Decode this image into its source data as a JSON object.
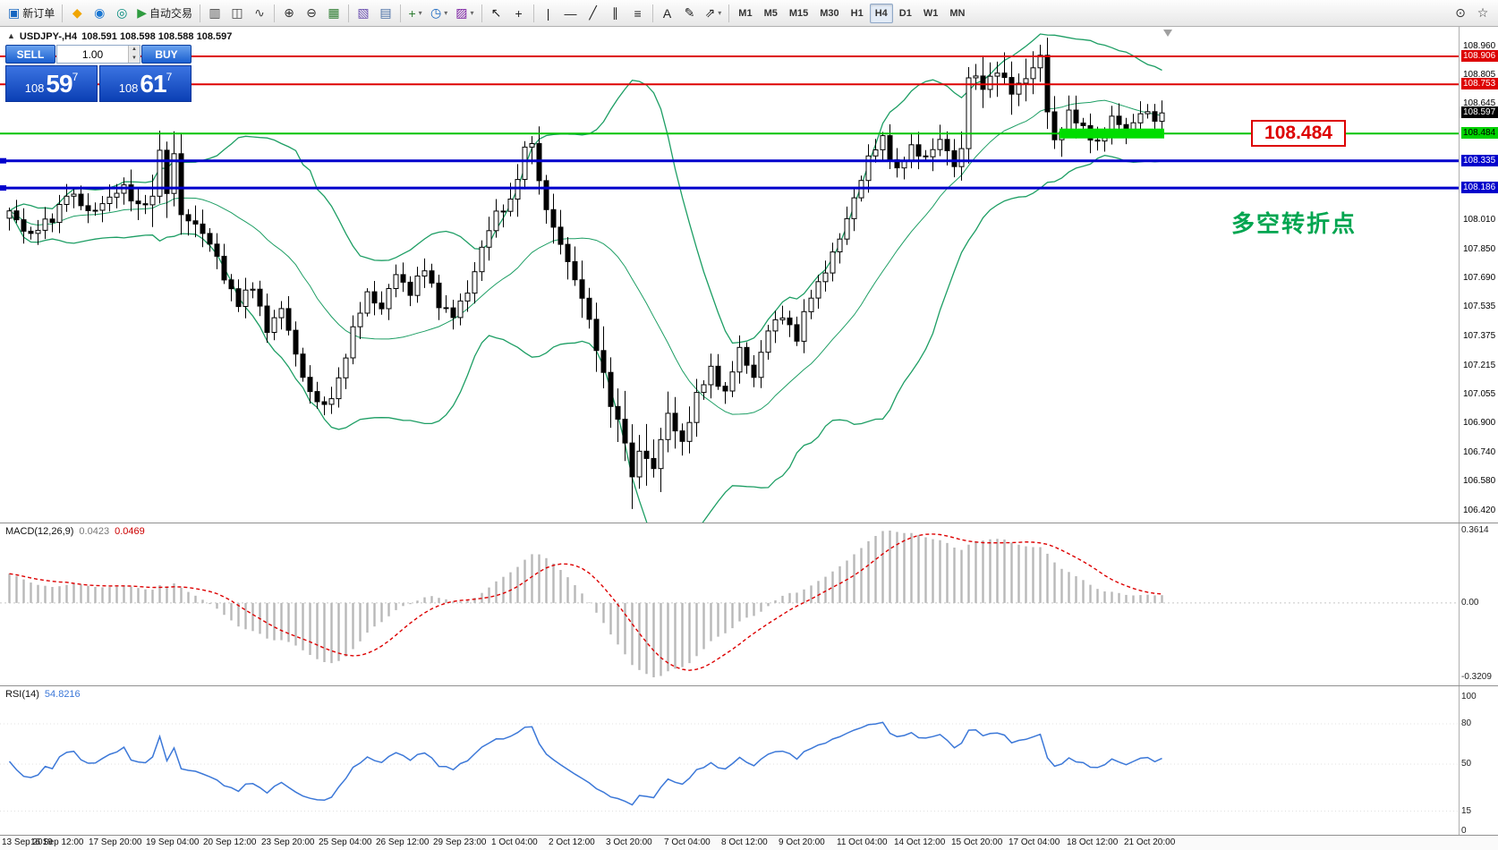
{
  "toolbar": {
    "groups": [
      {
        "items": [
          {
            "name": "new-order",
            "label": "新订单",
            "glyph": "▣",
            "glyph_color": "#1565c0"
          }
        ]
      },
      {
        "items": [
          {
            "name": "charts",
            "glyph": "◆",
            "glyph_color": "#f0a500"
          },
          {
            "name": "community",
            "glyph": "◉",
            "glyph_color": "#1976d2"
          },
          {
            "name": "support",
            "glyph": "◎",
            "glyph_color": "#00897b"
          },
          {
            "name": "autotrading",
            "label": "自动交易",
            "glyph": "▶",
            "glyph_color": "#2e9b3f"
          }
        ]
      },
      {
        "items": [
          {
            "name": "bar-chart",
            "glyph": "▥",
            "glyph_color": "#444444"
          },
          {
            "name": "candlestick-chart",
            "glyph": "◫",
            "glyph_color": "#444444"
          },
          {
            "name": "line-chart",
            "glyph": "∿",
            "glyph_color": "#444444"
          }
        ]
      },
      {
        "items": [
          {
            "name": "zoom-in",
            "glyph": "⊕",
            "glyph_color": "#333333"
          },
          {
            "name": "zoom-out",
            "glyph": "⊖",
            "glyph_color": "#333333"
          },
          {
            "name": "grid",
            "glyph": "▦",
            "glyph_color": "#2e7d32"
          }
        ]
      },
      {
        "items": [
          {
            "name": "indicators-window",
            "glyph": "▧",
            "glyph_color": "#6a4fb0"
          },
          {
            "name": "tile-windows",
            "glyph": "▤",
            "glyph_color": "#4a6fa5"
          }
        ]
      },
      {
        "items": [
          {
            "name": "add-indicator",
            "glyph": "+",
            "glyph_color": "#2e7d32",
            "dropdown": true
          },
          {
            "name": "periods",
            "glyph": "◷",
            "glyph_color": "#1565c0",
            "dropdown": true
          },
          {
            "name": "templates",
            "glyph": "▨",
            "glyph_color": "#7b1fa2",
            "dropdown": true
          }
        ]
      },
      {
        "items": [
          {
            "name": "cursor",
            "glyph": "↖",
            "glyph_color": "#222222"
          },
          {
            "name": "crosshair",
            "glyph": "+",
            "glyph_color": "#222222"
          }
        ]
      },
      {
        "items": [
          {
            "name": "vertical-line",
            "glyph": "|",
            "glyph_color": "#222222"
          },
          {
            "name": "horizontal-line",
            "glyph": "—",
            "glyph_color": "#222222"
          },
          {
            "name": "trendline",
            "glyph": "╱",
            "glyph_color": "#222222"
          },
          {
            "name": "equidistant-channel",
            "glyph": "∥",
            "glyph_color": "#222222"
          },
          {
            "name": "fibonacci",
            "glyph": "≡",
            "glyph_color": "#222222"
          }
        ]
      },
      {
        "items": [
          {
            "name": "text",
            "glyph": "A",
            "glyph_color": "#222222"
          },
          {
            "name": "text-label",
            "glyph": "✎",
            "glyph_color": "#222222"
          },
          {
            "name": "arrows",
            "glyph": "⇗",
            "glyph_color": "#222222",
            "dropdown": true
          }
        ]
      }
    ],
    "timeframes": {
      "items": [
        "M1",
        "M5",
        "M15",
        "M30",
        "H1",
        "H4",
        "D1",
        "W1",
        "MN"
      ],
      "active": "H4"
    },
    "right_items": [
      {
        "name": "search",
        "glyph": "⊙",
        "glyph_color": "#333333"
      },
      {
        "name": "favorites",
        "glyph": "☆",
        "glyph_color": "#333333"
      }
    ]
  },
  "symbol_bar": {
    "direction_icon": "▲",
    "symbol": "USDJPY-,H4",
    "quote": "108.591 108.598 108.588 108.597"
  },
  "trade_panel": {
    "sell_label": "SELL",
    "buy_label": "BUY",
    "lot_value": "1.00",
    "sell_price": {
      "prefix": "108",
      "big": "59",
      "sup": "7"
    },
    "buy_price": {
      "prefix": "108",
      "big": "61",
      "sup": "7"
    }
  },
  "annotations": {
    "callout_text": "108.484",
    "note_text": "多空转折点"
  },
  "price_axis": [
    {
      "text": "108.960",
      "price": 108.96,
      "style": "plain"
    },
    {
      "text": "108.906",
      "price": 108.906,
      "style": "red"
    },
    {
      "text": "108.805",
      "price": 108.805,
      "style": "plain"
    },
    {
      "text": "108.753",
      "price": 108.753,
      "style": "red"
    },
    {
      "text": "108.645",
      "price": 108.645,
      "style": "plain"
    },
    {
      "text": "108.597",
      "price": 108.597,
      "style": "black"
    },
    {
      "text": "108.484",
      "price": 108.484,
      "style": "green"
    },
    {
      "text": "108.335",
      "price": 108.335,
      "style": "blue"
    },
    {
      "text": "108.186",
      "price": 108.186,
      "style": "blue"
    },
    {
      "text": "108.010",
      "price": 108.01,
      "style": "plain"
    },
    {
      "text": "107.850",
      "price": 107.85,
      "style": "plain"
    },
    {
      "text": "107.690",
      "price": 107.69,
      "style": "plain"
    },
    {
      "text": "107.535",
      "price": 107.535,
      "style": "plain"
    },
    {
      "text": "107.375",
      "price": 107.375,
      "style": "plain"
    },
    {
      "text": "107.215",
      "price": 107.215,
      "style": "plain"
    },
    {
      "text": "107.055",
      "price": 107.055,
      "style": "plain"
    },
    {
      "text": "106.900",
      "price": 106.9,
      "style": "plain"
    },
    {
      "text": "106.740",
      "price": 106.74,
      "style": "plain"
    },
    {
      "text": "106.580",
      "price": 106.58,
      "style": "plain"
    },
    {
      "text": "106.420",
      "price": 106.42,
      "style": "plain"
    }
  ],
  "hlines": [
    {
      "price": 108.906,
      "color": "red"
    },
    {
      "price": 108.753,
      "color": "red"
    },
    {
      "price": 108.484,
      "color": "green"
    },
    {
      "price": 108.335,
      "color": "blue"
    },
    {
      "price": 108.186,
      "color": "blue"
    }
  ],
  "green_zone": {
    "price": 108.484,
    "from_bar": 147,
    "to_bar": 161
  },
  "colors": {
    "bull_fill": "#ffffff",
    "bear_fill": "#000000",
    "candle_stroke": "#000000",
    "bollinger": "#1d9e64",
    "line_red": "#dd0000",
    "line_blue": "#0000cc",
    "line_green": "#00c300",
    "zone_green": "#00dd00",
    "macd_histogram": "#b8b8b8",
    "macd_signal": "#dd0000",
    "rsi_line": "#3c78d8",
    "note_green": "#00a550",
    "callout_red": "#dd0000"
  },
  "chart_data": {
    "type": "candlestick",
    "symbol": "USDJPY-",
    "timeframe": "H4",
    "current_ohlc": {
      "open": "108.591",
      "high": "108.598",
      "low": "108.588",
      "close": "108.597"
    },
    "price_range": [
      106.42,
      108.96
    ],
    "bar_count": 162,
    "close_waypoints": [
      [
        0,
        108.05
      ],
      [
        3,
        107.93
      ],
      [
        6,
        108.02
      ],
      [
        8,
        108.16
      ],
      [
        11,
        108.06
      ],
      [
        14,
        108.12
      ],
      [
        16,
        108.2
      ],
      [
        18,
        108.08
      ],
      [
        20,
        108.12
      ],
      [
        21,
        108.42
      ],
      [
        22,
        108.15
      ],
      [
        23,
        108.38
      ],
      [
        24,
        108.02
      ],
      [
        26,
        108.0
      ],
      [
        28,
        107.88
      ],
      [
        30,
        107.7
      ],
      [
        32,
        107.56
      ],
      [
        34,
        107.64
      ],
      [
        36,
        107.42
      ],
      [
        38,
        107.52
      ],
      [
        40,
        107.28
      ],
      [
        42,
        107.06
      ],
      [
        44,
        106.98
      ],
      [
        46,
        107.14
      ],
      [
        48,
        107.4
      ],
      [
        50,
        107.62
      ],
      [
        52,
        107.52
      ],
      [
        54,
        107.72
      ],
      [
        56,
        107.62
      ],
      [
        58,
        107.74
      ],
      [
        60,
        107.56
      ],
      [
        62,
        107.48
      ],
      [
        64,
        107.62
      ],
      [
        66,
        107.86
      ],
      [
        68,
        108.04
      ],
      [
        70,
        108.12
      ],
      [
        72,
        108.38
      ],
      [
        73,
        108.44
      ],
      [
        74,
        108.22
      ],
      [
        76,
        107.96
      ],
      [
        78,
        107.78
      ],
      [
        80,
        107.6
      ],
      [
        82,
        107.3
      ],
      [
        84,
        107.02
      ],
      [
        86,
        106.8
      ],
      [
        87,
        106.58
      ],
      [
        88,
        106.76
      ],
      [
        90,
        106.66
      ],
      [
        92,
        106.94
      ],
      [
        94,
        106.8
      ],
      [
        96,
        107.04
      ],
      [
        98,
        107.2
      ],
      [
        100,
        107.06
      ],
      [
        102,
        107.3
      ],
      [
        104,
        107.16
      ],
      [
        106,
        107.4
      ],
      [
        108,
        107.5
      ],
      [
        110,
        107.36
      ],
      [
        112,
        107.6
      ],
      [
        114,
        107.74
      ],
      [
        116,
        107.9
      ],
      [
        118,
        108.14
      ],
      [
        120,
        108.34
      ],
      [
        122,
        108.46
      ],
      [
        124,
        108.28
      ],
      [
        126,
        108.4
      ],
      [
        128,
        108.36
      ],
      [
        130,
        108.44
      ],
      [
        132,
        108.32
      ],
      [
        133,
        108.4
      ],
      [
        134,
        108.8
      ],
      [
        136,
        108.74
      ],
      [
        138,
        108.84
      ],
      [
        140,
        108.7
      ],
      [
        142,
        108.8
      ],
      [
        144,
        108.9
      ],
      [
        145,
        108.6
      ],
      [
        146,
        108.44
      ],
      [
        148,
        108.6
      ],
      [
        150,
        108.5
      ],
      [
        152,
        108.44
      ],
      [
        154,
        108.56
      ],
      [
        156,
        108.5
      ],
      [
        158,
        108.6
      ],
      [
        160,
        108.56
      ],
      [
        161,
        108.597
      ]
    ],
    "bollinger": {
      "period": 20,
      "deviation": 2
    },
    "macd": {
      "label": "MACD(12,26,9)",
      "value_main": "0.0423",
      "value_signal": "0.0469",
      "axis_labels": [
        "0.3614",
        "0.00",
        "-0.3209"
      ]
    },
    "rsi": {
      "label": "RSI(14)",
      "value": "54.8216",
      "levels": [
        100,
        80,
        50,
        15,
        0
      ]
    },
    "x_axis_labels": [
      "13 Sep 2019",
      "16 Sep 12:00",
      "17 Sep 20:00",
      "19 Sep 04:00",
      "20 Sep 12:00",
      "23 Sep 20:00",
      "25 Sep 04:00",
      "26 Sep 12:00",
      "29 Sep 23:00",
      "1 Oct 04:00",
      "2 Oct 12:00",
      "3 Oct 20:00",
      "7 Oct 04:00",
      "8 Oct 12:00",
      "9 Oct 20:00",
      "11 Oct 04:00",
      "14 Oct 12:00",
      "15 Oct 20:00",
      "17 Oct 04:00",
      "18 Oct 12:00",
      "21 Oct 20:00"
    ]
  }
}
